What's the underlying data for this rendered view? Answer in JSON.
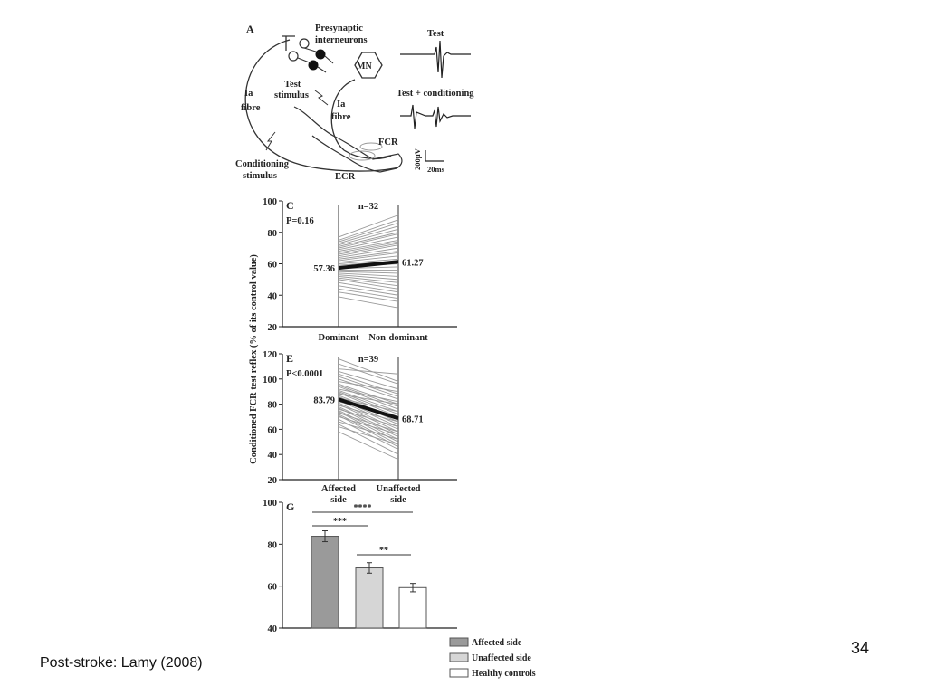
{
  "panel_a": {
    "letter": "A",
    "labels": {
      "presynaptic": [
        "Presynaptic",
        "interneurons"
      ],
      "mn": "MN",
      "test_stimulus": [
        "Test",
        "stimulus"
      ],
      "ia_fibre_left": [
        "Ia",
        "fibre"
      ],
      "ia_fibre_mid": [
        "Ia",
        "fibre"
      ],
      "conditioning": [
        "Conditioning",
        "stimulus"
      ],
      "fcr": "FCR",
      "ecr": "ECR",
      "trace_test": "Test",
      "trace_test_cond": "Test + conditioning",
      "scale_v": "200µV",
      "scale_t": "20ms"
    }
  },
  "chart_data": [
    {
      "type": "line",
      "panel": "C",
      "n_label": "n=32",
      "p_label": "P=0.16",
      "categories": [
        "Dominant",
        "Non-dominant"
      ],
      "ylim": [
        20,
        100
      ],
      "yticks": [
        20,
        40,
        60,
        80,
        100
      ],
      "mean": [
        57.36,
        61.27
      ],
      "mean_labels": [
        "57.36",
        "61.27"
      ],
      "individual_pairs": [
        [
          77,
          91
        ],
        [
          75,
          88
        ],
        [
          74,
          86
        ],
        [
          73,
          84
        ],
        [
          72,
          82
        ],
        [
          71,
          80
        ],
        [
          70,
          79
        ],
        [
          69,
          77
        ],
        [
          68,
          75
        ],
        [
          67,
          74
        ],
        [
          66,
          73
        ],
        [
          65,
          72
        ],
        [
          64,
          70
        ],
        [
          63,
          68
        ],
        [
          62,
          67
        ],
        [
          61,
          65
        ],
        [
          60,
          63
        ],
        [
          59,
          62
        ],
        [
          58,
          60
        ],
        [
          57,
          58
        ],
        [
          56,
          56
        ],
        [
          55,
          54
        ],
        [
          54,
          52
        ],
        [
          53,
          50
        ],
        [
          52,
          48
        ],
        [
          51,
          46
        ],
        [
          50,
          44
        ],
        [
          48,
          42
        ],
        [
          46,
          40
        ],
        [
          44,
          38
        ],
        [
          42,
          36
        ],
        [
          39,
          32
        ]
      ]
    },
    {
      "type": "line",
      "panel": "E",
      "n_label": "n=39",
      "p_label": "P<0.0001",
      "categories": [
        "Affected side",
        "Unaffected side"
      ],
      "category_lines": [
        [
          "Affected",
          "side"
        ],
        [
          "Unaffected",
          "side"
        ]
      ],
      "ylim": [
        20,
        120
      ],
      "yticks": [
        20,
        40,
        60,
        80,
        100,
        120
      ],
      "mean": [
        83.79,
        68.71
      ],
      "mean_labels": [
        "83.79",
        "68.71"
      ],
      "individual_pairs": [
        [
          116,
          98
        ],
        [
          112,
          96
        ],
        [
          108,
          104
        ],
        [
          106,
          92
        ],
        [
          104,
          88
        ],
        [
          102,
          86
        ],
        [
          100,
          84
        ],
        [
          98,
          90
        ],
        [
          96,
          80
        ],
        [
          95,
          78
        ],
        [
          94,
          76
        ],
        [
          92,
          82
        ],
        [
          91,
          74
        ],
        [
          90,
          72
        ],
        [
          89,
          70
        ],
        [
          88,
          80
        ],
        [
          87,
          68
        ],
        [
          86,
          66
        ],
        [
          85,
          74
        ],
        [
          84,
          64
        ],
        [
          83,
          62
        ],
        [
          82,
          70
        ],
        [
          81,
          60
        ],
        [
          80,
          58
        ],
        [
          79,
          66
        ],
        [
          78,
          56
        ],
        [
          77,
          54
        ],
        [
          76,
          62
        ],
        [
          75,
          52
        ],
        [
          74,
          50
        ],
        [
          73,
          58
        ],
        [
          72,
          48
        ],
        [
          71,
          46
        ],
        [
          70,
          56
        ],
        [
          68,
          44
        ],
        [
          66,
          52
        ],
        [
          64,
          40
        ],
        [
          62,
          48
        ],
        [
          58,
          36
        ]
      ]
    },
    {
      "type": "bar",
      "panel": "G",
      "categories": [
        "Affected side",
        "Unaffected side",
        "Healthy controls"
      ],
      "values": [
        83.8,
        68.7,
        59.3
      ],
      "errors": [
        2.6,
        2.5,
        2.0
      ],
      "colors": [
        "#9a9a9a",
        "#d6d6d6",
        "#ffffff"
      ],
      "ylim": [
        40,
        100
      ],
      "yticks": [
        40,
        60,
        80,
        100
      ],
      "significance": [
        {
          "pair": [
            0,
            1
          ],
          "label": "***"
        },
        {
          "pair": [
            1,
            2
          ],
          "label": "**"
        },
        {
          "pair": [
            0,
            2
          ],
          "label": "****"
        }
      ],
      "legend": [
        "Affected side",
        "Unaffected side",
        "Healthy controls"
      ],
      "legend_position": "bottom"
    }
  ],
  "shared_ylabel": "Conditioned FCR test reflex (% of its control value)",
  "caption": "Post-stroke: Lamy (2008)",
  "page_number": "34"
}
